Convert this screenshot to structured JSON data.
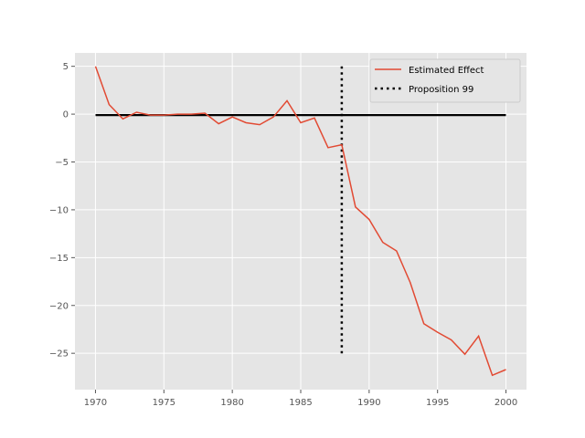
{
  "chart_data": {
    "type": "line",
    "title": "",
    "xlabel": "",
    "ylabel": "",
    "xlim": [
      1968.5,
      2001.5
    ],
    "ylim": [
      -28.8,
      6.4
    ],
    "x_ticks": [
      1970,
      1975,
      1980,
      1985,
      1990,
      1995,
      2000
    ],
    "y_ticks": [
      5,
      0,
      -5,
      -10,
      -15,
      -20,
      -25
    ],
    "grid": true,
    "legend_position": "top-right",
    "series": [
      {
        "name": "Estimated Effect",
        "color": "#E24A33",
        "style": "solid",
        "x": [
          1970,
          1971,
          1972,
          1973,
          1974,
          1975,
          1976,
          1977,
          1978,
          1979,
          1980,
          1981,
          1982,
          1983,
          1984,
          1985,
          1986,
          1987,
          1988,
          1989,
          1990,
          1991,
          1992,
          1993,
          1994,
          1995,
          1996,
          1997,
          1998,
          1999,
          2000
        ],
        "y": [
          5.0,
          1.0,
          -0.5,
          0.2,
          -0.1,
          -0.1,
          0.0,
          0.0,
          0.1,
          -1.0,
          -0.3,
          -0.9,
          -1.1,
          -0.3,
          1.4,
          -0.9,
          -0.4,
          -3.5,
          -3.2,
          -9.7,
          -11.0,
          -13.4,
          -14.3,
          -17.6,
          -21.9,
          -22.8,
          -23.6,
          -25.1,
          -23.2,
          -27.3,
          -26.7
        ]
      },
      {
        "name": "Proposition 99",
        "color": "#000000",
        "style": "dotted",
        "x": [
          1988,
          1988
        ],
        "y": [
          5,
          -25
        ]
      },
      {
        "name": "",
        "color": "#000000",
        "style": "solid",
        "x": [
          1970,
          2000
        ],
        "y": [
          -0.1,
          -0.1
        ]
      }
    ]
  }
}
